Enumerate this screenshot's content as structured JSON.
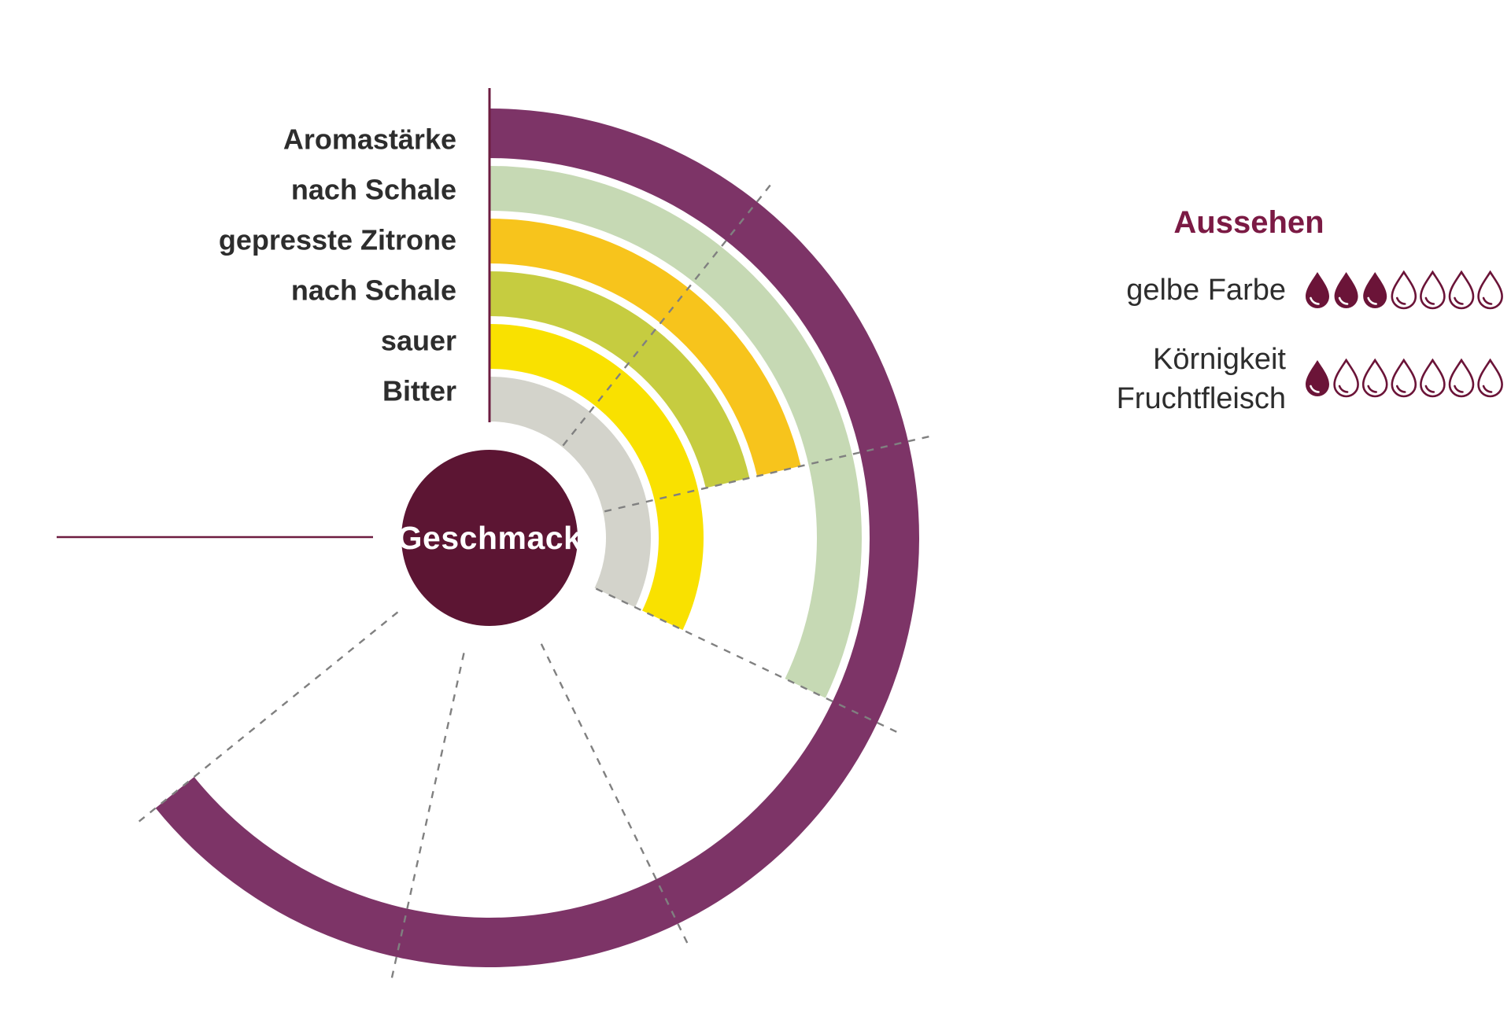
{
  "chart_data": {
    "type": "radial-bar",
    "center_label": "Geschmack",
    "unit_angle_deg": 38.5,
    "scale_units_shown": 6,
    "rings": [
      {
        "label": "Aromastärke",
        "rating_units": 6,
        "color": "#7d3467"
      },
      {
        "label": "nach Schale",
        "rating_units": 3,
        "color": "#c6d9b4"
      },
      {
        "label": "gepresste Zitrone",
        "rating_units": 2,
        "color": "#f7c41c"
      },
      {
        "label": "nach Schale",
        "rating_units": 2,
        "color": "#c6cc40"
      },
      {
        "label": "sauer",
        "rating_units": 3,
        "color": "#f9e100"
      },
      {
        "label": "Bitter",
        "rating_units": 3,
        "color": "#d3d3cb"
      }
    ],
    "grid_angles_deg": [
      38.5,
      77,
      115.5,
      154,
      192.5,
      231
    ],
    "colors": {
      "center_circle": "#5c1533",
      "pointer_line": "#6d1c40",
      "grid_line": "#808080",
      "title": "#7b1a44",
      "droplet": "#6b1438",
      "text": "#2d2d2d"
    }
  },
  "aussehen": {
    "title": "Aussehen",
    "rows": [
      {
        "label": "gelbe Farbe",
        "label_lines": [
          "gelbe Farbe"
        ],
        "filled": 3,
        "total": 7
      },
      {
        "label": "Körnigkeit Fruchtfleisch",
        "label_lines": [
          "Körnigkeit",
          "Fruchtfleisch"
        ],
        "filled": 1,
        "total": 7
      }
    ]
  }
}
